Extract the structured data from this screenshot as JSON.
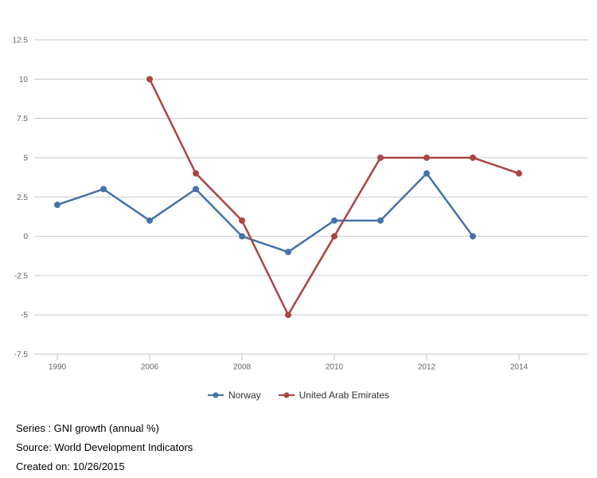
{
  "chart_data": {
    "type": "line",
    "title": "",
    "categories": [
      "1990",
      "",
      "2006",
      "2007",
      "2008",
      "2009",
      "2010",
      "2011",
      "2012",
      "2013",
      "2014",
      ""
    ],
    "x_tick_indices": [
      0,
      2,
      4,
      6,
      8,
      10
    ],
    "x_tick_labels": [
      "1990",
      "2006",
      "2008",
      "2010",
      "2012",
      "2014"
    ],
    "y_ticks": [
      12.5,
      10,
      7.5,
      5,
      2.5,
      0,
      -2.5,
      -5,
      -7.5
    ],
    "ylim": [
      -7.5,
      12.5
    ],
    "grid": true,
    "legend_position": "bottom",
    "series": [
      {
        "name": "Norway",
        "color": "#4572A7",
        "values": [
          2,
          3,
          1,
          3,
          0,
          -1,
          1,
          1,
          4,
          0,
          null,
          null
        ]
      },
      {
        "name": "United Arab Emirates",
        "color": "#AA4643",
        "values": [
          null,
          null,
          10,
          4,
          1,
          -5,
          0,
          5,
          5,
          5,
          4,
          null
        ]
      }
    ]
  },
  "footer": {
    "series_line": "Series : GNI growth (annual %)",
    "source_line": "Source: World Development Indicators",
    "created_line": "Created on: 10/26/2015"
  },
  "colors": {
    "grid": "#c9c9c9",
    "tick": "#c0c0c0",
    "axis_label": "#666666",
    "legend_text": "#333333",
    "background": "#ffffff"
  }
}
